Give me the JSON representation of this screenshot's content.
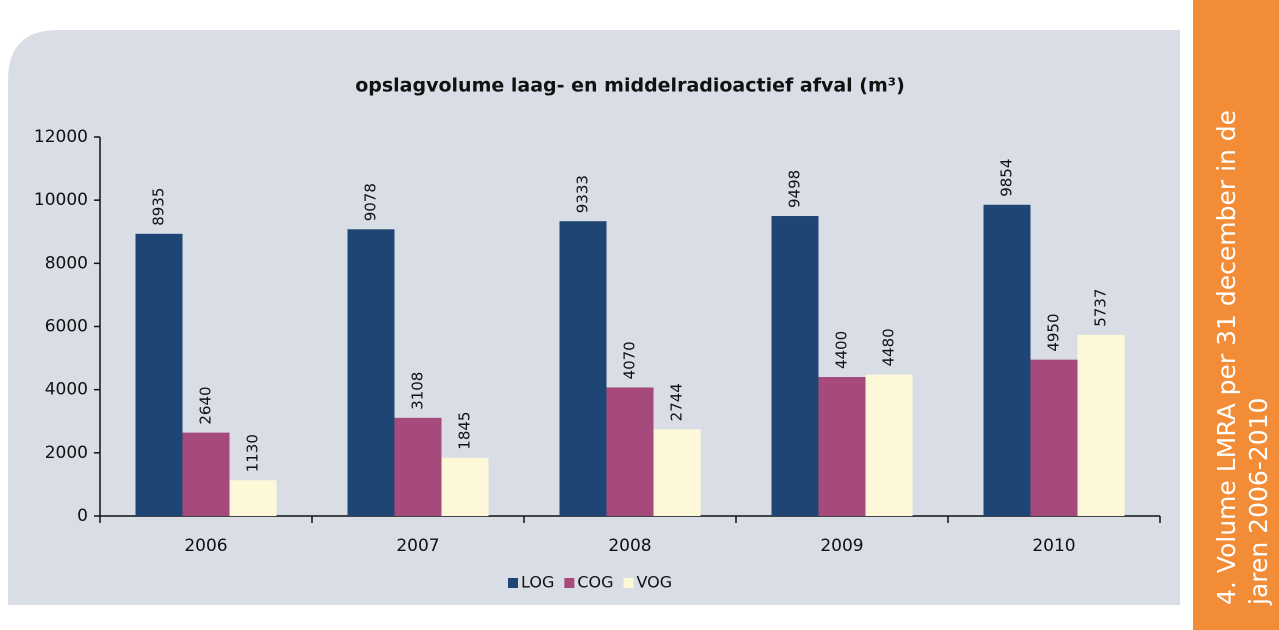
{
  "sidebar": {
    "lines": [
      "4. Volume LMRA per 31 december in de",
      "jaren 2006-2010"
    ]
  },
  "chart_data": {
    "type": "bar",
    "title": "opslagvolume laag- en middelradioactief afval (m³)",
    "categories": [
      "2006",
      "2007",
      "2008",
      "2009",
      "2010"
    ],
    "series": [
      {
        "name": "LOG",
        "color": "#1f4574",
        "values": [
          8935,
          9078,
          9333,
          9498,
          9854
        ]
      },
      {
        "name": "COG",
        "color": "#a64a7b",
        "values": [
          2640,
          3108,
          4070,
          4400,
          4950
        ]
      },
      {
        "name": "VOG",
        "color": "#fdf9d8",
        "values": [
          1130,
          1845,
          2744,
          4480,
          5737
        ]
      }
    ],
    "ylim": [
      0,
      12000
    ],
    "yticks": [
      0,
      2000,
      4000,
      6000,
      8000,
      10000,
      12000
    ],
    "legend": "bottom"
  }
}
